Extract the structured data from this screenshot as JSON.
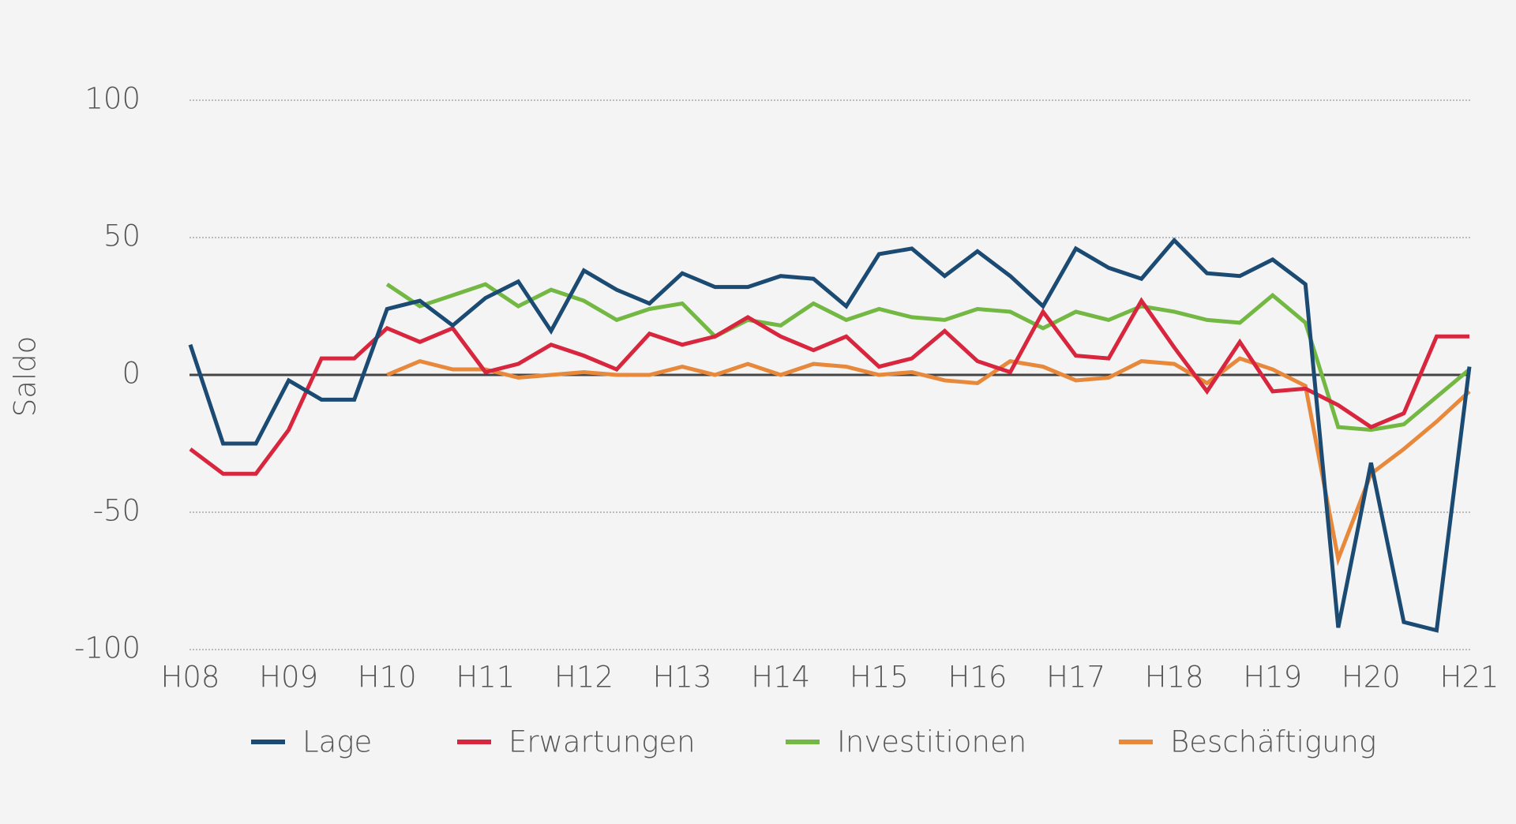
{
  "chart_data": {
    "type": "line",
    "y_label": "Saldo",
    "categories": [
      "H08",
      null,
      null,
      "H09",
      null,
      null,
      "H10",
      null,
      null,
      "H11",
      null,
      null,
      "H12",
      null,
      null,
      "H13",
      null,
      null,
      "H14",
      null,
      null,
      "H15",
      null,
      null,
      "H16",
      null,
      null,
      "H17",
      null,
      null,
      "H18",
      null,
      null,
      "H19",
      null,
      null,
      "H20",
      null,
      null,
      "H21"
    ],
    "series": [
      {
        "name": "Lage",
        "color": "#1b4a73",
        "values": [
          11,
          -25,
          -25,
          -2,
          -9,
          -9,
          24,
          27,
          18,
          28,
          34,
          16,
          38,
          31,
          26,
          37,
          32,
          32,
          36,
          35,
          25,
          44,
          46,
          36,
          45,
          36,
          25,
          46,
          39,
          35,
          49,
          37,
          36,
          42,
          33,
          -92,
          -32,
          -90,
          -93,
          3
        ]
      },
      {
        "name": "Erwartungen",
        "color": "#d7263d",
        "values": [
          -27,
          -36,
          -36,
          -20,
          6,
          6,
          17,
          12,
          17,
          1,
          4,
          11,
          7,
          2,
          15,
          11,
          14,
          21,
          14,
          9,
          14,
          3,
          6,
          16,
          5,
          1,
          23,
          7,
          6,
          27,
          10,
          -6,
          12,
          -6,
          -5,
          -11,
          -19,
          -14,
          14,
          14
        ]
      },
      {
        "name": "Investitionen",
        "color": "#73b843",
        "values": [
          null,
          null,
          null,
          null,
          null,
          null,
          33,
          25,
          29,
          33,
          25,
          31,
          27,
          20,
          24,
          26,
          14,
          20,
          18,
          26,
          20,
          24,
          21,
          20,
          24,
          23,
          17,
          23,
          20,
          25,
          23,
          20,
          19,
          29,
          19,
          -19,
          -20,
          -18,
          -8,
          2
        ]
      },
      {
        "name": "Beschäftigung",
        "color": "#e8883b",
        "values": [
          null,
          null,
          null,
          null,
          null,
          null,
          0,
          5,
          2,
          2,
          -1,
          0,
          1,
          0,
          0,
          3,
          0,
          4,
          0,
          4,
          3,
          0,
          1,
          -2,
          -3,
          5,
          3,
          -2,
          -1,
          5,
          4,
          -3,
          6,
          2,
          -4,
          -67,
          -36,
          -27,
          -17,
          -6
        ]
      }
    ],
    "ylim": [
      -100,
      100
    ],
    "yticks": [
      -100,
      -50,
      0,
      50,
      100
    ],
    "grid": true
  }
}
